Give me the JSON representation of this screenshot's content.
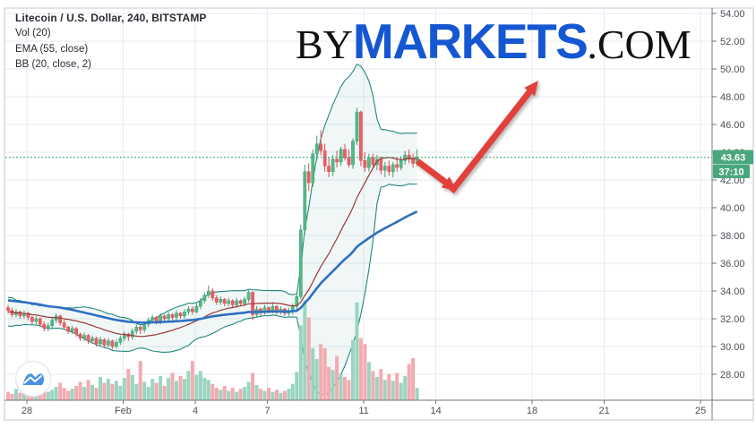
{
  "header": {
    "title": "Litecoin / U.S. Dollar, 240, BITSTAMP",
    "indicator_vol": "Vol (20)",
    "indicator_ema": "EMA (55, close)",
    "indicator_bb": "BB (20, close, 2)"
  },
  "logo": {
    "prefix": "BY",
    "brand": "MARKETS",
    "suffix": ".COM",
    "brand_color": "#1557d2",
    "text_color": "#101010"
  },
  "price_axis": {
    "labels": [
      "54.00",
      "52.00",
      "50.00",
      "48.00",
      "46.00",
      "44.00",
      "42.00",
      "40.00",
      "38.00",
      "36.00",
      "34.00",
      "32.00",
      "30.00",
      "28.00"
    ],
    "min": 28,
    "max": 54,
    "step": 2,
    "last_price_label": "43.63",
    "countdown_label": "37:10",
    "badge_color": "#4aa77c"
  },
  "time_axis": {
    "ticks": [
      {
        "label": "28",
        "day": 0
      },
      {
        "label": "Feb",
        "day": 4
      },
      {
        "label": "4",
        "day": 7
      },
      {
        "label": "7",
        "day": 10
      },
      {
        "label": "11",
        "day": 14
      },
      {
        "label": "14",
        "day": 17
      },
      {
        "label": "18",
        "day": 21
      },
      {
        "label": "21",
        "day": 24
      },
      {
        "label": "25",
        "day": 28
      }
    ]
  },
  "chart_data": {
    "type": "candlestick",
    "symbol": "Litecoin / U.S. Dollar",
    "interval": "240",
    "exchange": "BITSTAMP",
    "last_price": 43.63,
    "countdown": "37:10",
    "ylim": [
      26.2,
      54.3
    ],
    "grid": true,
    "indicators": {
      "ema": {
        "length": 55,
        "source": "close",
        "color": "#2e6fc2"
      },
      "bollinger": {
        "length": 20,
        "source": "close",
        "mult": 2,
        "band_color": "#25877f",
        "basis_color": "#993737",
        "fill_color": "rgba(37,135,127,0.07)"
      },
      "volume": {
        "length": 20,
        "up_color": "#9ad5c0",
        "down_color": "#f3abb0"
      }
    },
    "prehistory_closes": [
      34.4,
      33.2,
      34.0,
      32.8,
      33.8,
      32.6,
      33.6,
      32.5,
      33.4,
      32.3,
      33.2,
      32.2,
      33.0,
      32.1,
      32.9,
      32.0,
      32.8,
      31.9,
      32.6,
      31.8,
      32.5,
      31.9,
      32.4,
      31.8
    ],
    "candles_format": [
      "open",
      "high",
      "low",
      "close",
      "volume"
    ],
    "candles": [
      [
        32.8,
        33.0,
        32.4,
        32.6,
        0.8
      ],
      [
        32.6,
        32.8,
        32.1,
        32.3,
        0.6
      ],
      [
        32.3,
        32.7,
        32.1,
        32.5,
        1.1
      ],
      [
        32.5,
        32.6,
        32.0,
        32.2,
        0.7
      ],
      [
        32.2,
        32.6,
        32.0,
        32.4,
        0.9
      ],
      [
        32.4,
        32.5,
        31.9,
        32.1,
        1.2
      ],
      [
        32.1,
        32.2,
        31.6,
        31.8,
        1.6
      ],
      [
        31.8,
        32.2,
        31.6,
        32.0,
        0.9
      ],
      [
        32.0,
        32.1,
        31.4,
        31.6,
        1.4
      ],
      [
        31.6,
        31.8,
        31.1,
        31.3,
        1.1
      ],
      [
        31.3,
        31.7,
        31.1,
        31.5,
        0.8
      ],
      [
        31.5,
        32.1,
        31.3,
        31.9,
        1.0
      ],
      [
        31.9,
        32.4,
        31.7,
        32.2,
        1.3
      ],
      [
        32.2,
        32.3,
        31.5,
        31.7,
        1.7
      ],
      [
        31.7,
        31.9,
        31.2,
        31.4,
        1.2
      ],
      [
        31.4,
        31.5,
        30.9,
        31.1,
        0.9
      ],
      [
        31.1,
        31.5,
        30.9,
        31.3,
        1.1
      ],
      [
        31.3,
        31.4,
        30.7,
        30.9,
        1.4
      ],
      [
        30.9,
        31.0,
        30.4,
        30.6,
        1.8
      ],
      [
        30.6,
        31.0,
        30.4,
        30.8,
        1.3
      ],
      [
        30.8,
        30.9,
        30.2,
        30.4,
        2.0
      ],
      [
        30.4,
        30.8,
        30.2,
        30.6,
        1.5
      ],
      [
        30.6,
        30.7,
        30.0,
        30.2,
        1.2
      ],
      [
        30.2,
        30.7,
        30.0,
        30.5,
        2.3
      ],
      [
        30.5,
        30.6,
        29.9,
        30.1,
        1.7
      ],
      [
        30.1,
        30.6,
        29.95,
        30.4,
        2.1
      ],
      [
        30.4,
        30.5,
        29.8,
        30.0,
        1.6
      ],
      [
        30.0,
        30.5,
        29.85,
        30.3,
        1.9
      ],
      [
        30.3,
        30.8,
        30.1,
        30.6,
        1.4
      ],
      [
        30.6,
        31.1,
        30.4,
        30.9,
        2.2
      ],
      [
        30.9,
        31.0,
        30.4,
        30.7,
        3.1
      ],
      [
        30.7,
        31.3,
        30.5,
        31.1,
        2.5
      ],
      [
        31.1,
        31.6,
        30.9,
        31.4,
        1.6
      ],
      [
        31.4,
        31.5,
        30.9,
        31.2,
        3.9
      ],
      [
        31.2,
        31.8,
        31.0,
        31.6,
        1.8
      ],
      [
        31.6,
        32.1,
        31.4,
        31.9,
        1.3
      ],
      [
        31.9,
        32.3,
        31.7,
        32.1,
        2.1
      ],
      [
        32.1,
        32.2,
        31.6,
        31.8,
        1.7
      ],
      [
        31.8,
        32.4,
        31.6,
        32.2,
        2.4
      ],
      [
        32.2,
        32.3,
        31.8,
        32.0,
        1.4
      ],
      [
        32.0,
        32.5,
        31.8,
        32.3,
        2.2
      ],
      [
        32.3,
        32.4,
        31.9,
        32.1,
        2.7
      ],
      [
        32.1,
        32.6,
        31.9,
        32.4,
        1.9
      ],
      [
        32.4,
        32.5,
        32.0,
        32.2,
        2.4
      ],
      [
        32.2,
        32.7,
        32.0,
        32.5,
        2.1
      ],
      [
        32.5,
        32.9,
        32.3,
        32.7,
        2.9
      ],
      [
        32.7,
        32.9,
        32.3,
        32.5,
        3.9
      ],
      [
        32.5,
        33.1,
        32.4,
        32.9,
        2.5
      ],
      [
        32.9,
        33.5,
        32.7,
        33.3,
        2.9
      ],
      [
        33.3,
        33.9,
        33.1,
        33.7,
        2.2
      ],
      [
        33.7,
        34.4,
        33.5,
        34.0,
        2.0
      ],
      [
        34.0,
        34.2,
        33.3,
        33.5,
        1.6
      ],
      [
        33.5,
        33.7,
        33.0,
        33.2,
        1.2
      ],
      [
        33.2,
        33.6,
        33.0,
        33.4,
        1.0
      ],
      [
        33.4,
        33.5,
        32.9,
        33.1,
        1.4
      ],
      [
        33.1,
        33.5,
        32.9,
        33.3,
        0.9
      ],
      [
        33.3,
        33.4,
        32.8,
        33.0,
        1.2
      ],
      [
        33.0,
        33.5,
        32.8,
        33.3,
        0.8
      ],
      [
        33.3,
        33.4,
        32.9,
        33.1,
        1.1
      ],
      [
        33.1,
        33.6,
        32.9,
        33.4,
        1.3
      ],
      [
        33.4,
        34.05,
        33.2,
        33.9,
        1.8
      ],
      [
        33.9,
        34.0,
        31.9,
        32.3,
        2.7
      ],
      [
        32.3,
        32.9,
        32.1,
        32.7,
        1.5
      ],
      [
        32.7,
        32.8,
        32.2,
        32.5,
        1.1
      ],
      [
        32.5,
        33.0,
        32.3,
        32.8,
        0.9
      ],
      [
        32.8,
        32.9,
        32.4,
        32.6,
        1.2
      ],
      [
        32.6,
        33.1,
        32.4,
        32.9,
        0.8
      ],
      [
        32.9,
        33.0,
        32.3,
        32.5,
        1.0
      ],
      [
        32.5,
        32.9,
        32.3,
        32.7,
        0.7
      ],
      [
        32.7,
        32.8,
        32.2,
        32.4,
        0.9
      ],
      [
        32.4,
        32.8,
        32.2,
        32.6,
        1.1
      ],
      [
        32.6,
        33.1,
        32.3,
        32.9,
        1.6
      ],
      [
        32.9,
        33.8,
        32.6,
        33.6,
        2.8
      ],
      [
        33.6,
        38.8,
        33.4,
        38.4,
        7.5
      ],
      [
        38.4,
        43.1,
        38.1,
        42.6,
        10
      ],
      [
        42.6,
        43.2,
        41.2,
        41.8,
        8.3
      ],
      [
        41.8,
        44.2,
        41.5,
        43.9,
        5.2
      ],
      [
        43.9,
        45.2,
        43.4,
        44.6,
        4.1
      ],
      [
        44.6,
        45.6,
        43.8,
        44.1,
        5.6
      ],
      [
        44.1,
        44.6,
        42.6,
        43.0,
        5.2
      ],
      [
        43.0,
        43.6,
        42.2,
        42.6,
        3.3
      ],
      [
        42.6,
        43.8,
        42.3,
        43.5,
        3.0
      ],
      [
        43.5,
        44.1,
        42.9,
        43.3,
        4.4
      ],
      [
        43.3,
        44.4,
        43.0,
        44.2,
        2.6
      ],
      [
        44.2,
        44.6,
        43.4,
        43.6,
        2.3
      ],
      [
        43.6,
        44.2,
        42.9,
        43.1,
        2.0
      ],
      [
        43.1,
        45.0,
        42.8,
        44.8,
        6.0
      ],
      [
        44.8,
        47.2,
        44.5,
        46.9,
        9.8
      ],
      [
        46.9,
        47.0,
        43.0,
        43.4,
        6.2
      ],
      [
        43.4,
        44.0,
        42.6,
        42.9,
        5.6
      ],
      [
        42.9,
        43.9,
        42.6,
        43.6,
        3.8
      ],
      [
        43.6,
        43.9,
        42.8,
        43.1,
        2.9
      ],
      [
        43.1,
        43.8,
        42.7,
        43.5,
        2.3
      ],
      [
        43.5,
        43.7,
        42.4,
        42.7,
        3.1
      ],
      [
        42.7,
        43.3,
        42.2,
        43.0,
        2.0
      ],
      [
        43.0,
        43.4,
        42.3,
        42.6,
        2.6
      ],
      [
        42.6,
        43.3,
        42.2,
        43.1,
        1.9
      ],
      [
        43.1,
        43.6,
        42.6,
        42.9,
        2.7
      ],
      [
        42.9,
        43.7,
        42.7,
        43.4,
        1.7
      ],
      [
        43.4,
        44.1,
        43.1,
        43.8,
        2.4
      ],
      [
        43.8,
        44.2,
        43.2,
        43.5,
        3.6
      ],
      [
        43.5,
        43.9,
        42.9,
        43.2,
        4.2
      ],
      [
        43.2,
        44.2,
        43.0,
        43.63,
        1.2
      ]
    ],
    "candle_colors": {
      "up_fill": "#53b987",
      "up_stroke": "#3f9e72",
      "down_fill": "#eb5e65",
      "down_stroke": "#de4b53"
    },
    "price_line_color": "#2f9e68",
    "grid_color": "#e5ebf3"
  },
  "annotation_arrow": {
    "color": "#e2403b",
    "shaft_width": 7,
    "head_length": 16,
    "head_width": 15,
    "arrows": [
      {
        "tail": [
          466,
          180
        ],
        "tip": [
          510,
          213
        ]
      },
      {
        "tail": [
          504,
          214
        ],
        "tip": [
          601,
          90
        ]
      }
    ]
  }
}
